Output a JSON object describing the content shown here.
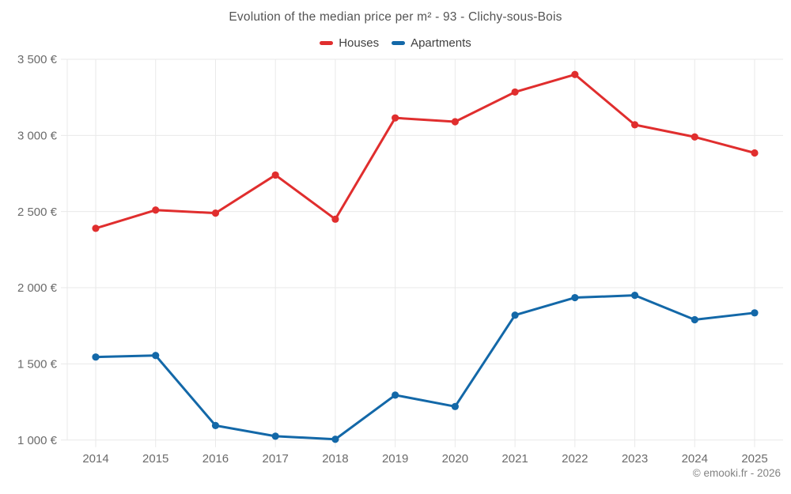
{
  "watermark": "© emooki.fr - 2026",
  "colors": {
    "houses": "#e02e2e",
    "apartments": "#1368a8",
    "grid": "#e9e9e9",
    "tick_text": "#6b6b6b",
    "title_text": "#545454"
  },
  "chart_data": {
    "type": "line",
    "title": "Evolution of the median price per m² - 93 - Clichy-sous-Bois",
    "x": [
      2014,
      2015,
      2016,
      2017,
      2018,
      2019,
      2020,
      2021,
      2022,
      2023,
      2024,
      2025
    ],
    "series": [
      {
        "name": "Houses",
        "color": "#e02e2e",
        "values": [
          2390,
          2510,
          2490,
          2740,
          2450,
          3115,
          3090,
          3285,
          3400,
          3070,
          2990,
          2885
        ]
      },
      {
        "name": "Apartments",
        "color": "#1368a8",
        "values": [
          1545,
          1555,
          1095,
          1025,
          1005,
          1295,
          1220,
          1820,
          1935,
          1950,
          1790,
          1835
        ]
      }
    ],
    "ylim": [
      1000,
      3500
    ],
    "yticks": [
      {
        "value": 1000,
        "label": "1 000 €"
      },
      {
        "value": 1500,
        "label": "1 500 €"
      },
      {
        "value": 2000,
        "label": "2 000 €"
      },
      {
        "value": 2500,
        "label": "2 500 €"
      },
      {
        "value": 3000,
        "label": "3 000 €"
      },
      {
        "value": 3500,
        "label": "3 500 €"
      }
    ],
    "grid": true,
    "legend_position": "top",
    "xlabel": "",
    "ylabel": ""
  }
}
